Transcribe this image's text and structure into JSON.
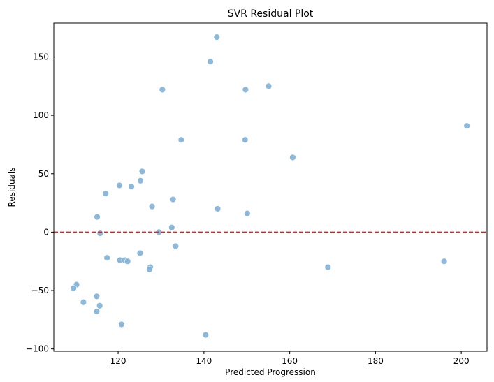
{
  "chart_data": {
    "type": "scatter",
    "title": "SVR Residual Plot",
    "xlabel": "Predicted Progression",
    "ylabel": "Residuals",
    "xlim": [
      105,
      206
    ],
    "ylim": [
      -102,
      179
    ],
    "xticks": [
      120,
      140,
      160,
      180,
      200
    ],
    "yticks": [
      -100,
      -50,
      0,
      50,
      100,
      150
    ],
    "reference_line": {
      "y": 0,
      "style": "dashed",
      "color": "#e3201b"
    },
    "point_color": "#7fb0d5",
    "grid": false,
    "x": [
      143.0,
      141.5,
      130.3,
      149.7,
      155.1,
      201.3,
      134.7,
      149.6,
      160.7,
      125.6,
      120.3,
      125.2,
      123.1,
      117.1,
      127.9,
      143.2,
      150.1,
      115.1,
      132.8,
      132.5,
      115.8,
      129.5,
      133.4,
      125.1,
      117.4,
      120.4,
      121.5,
      122.2,
      127.5,
      127.3,
      168.9,
      196.0,
      110.3,
      109.6,
      115.0,
      111.9,
      115.7,
      115.0,
      120.8,
      140.4
    ],
    "y": [
      167,
      146,
      122,
      122,
      125,
      91,
      79,
      79,
      64,
      52,
      40,
      44,
      39,
      33,
      22,
      20,
      16,
      13,
      28,
      4,
      -1,
      0,
      -12,
      -18,
      -22,
      -24,
      -24,
      -25,
      -30,
      -32,
      -30,
      -25,
      -45,
      -48,
      -55,
      -60,
      -63,
      -68,
      -79,
      -88
    ]
  }
}
